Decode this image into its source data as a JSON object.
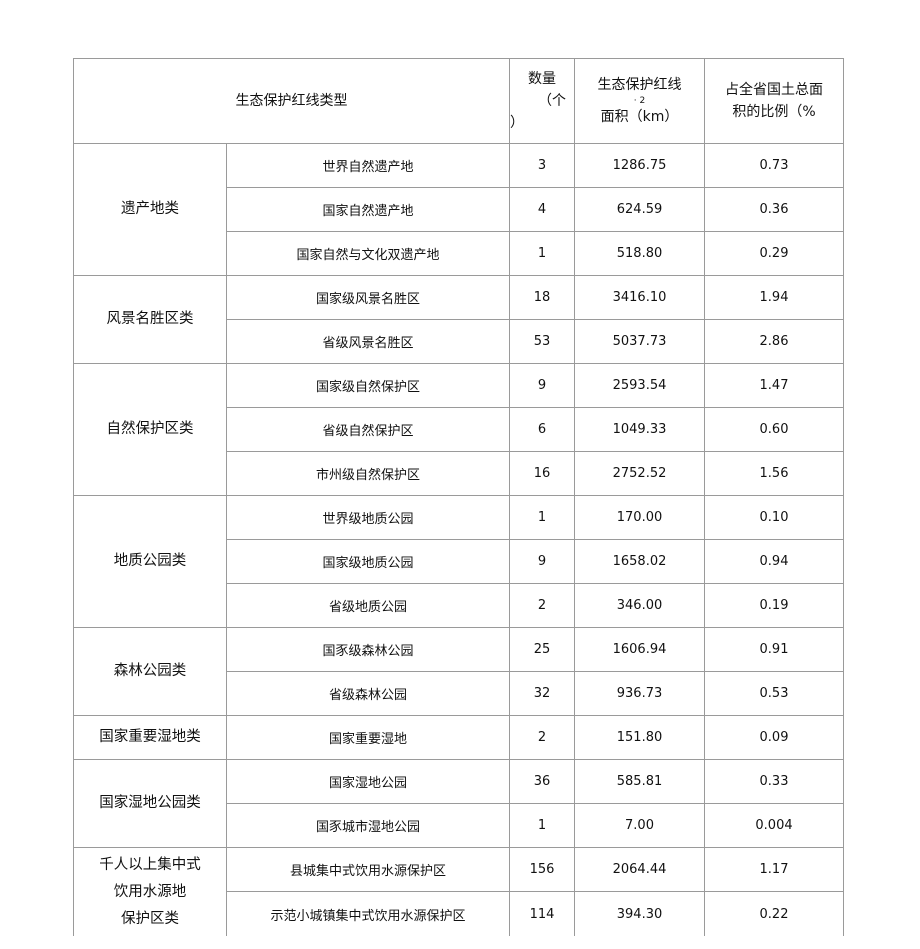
{
  "header": {
    "type": "生态保护红线类型",
    "count_line1": "数量",
    "count_line2": "（个",
    "count_line3": "）",
    "area_line1": "生态保护红线",
    "area_sup": "· 2",
    "area_line2": "面积（km）",
    "ratio_line1": "占全省国土总面",
    "ratio_line2": "积的比例（%"
  },
  "groups": [
    {
      "category": "遗产地类",
      "rows": [
        {
          "name": "世界自然遗产地",
          "count": "3",
          "area": "1286.75",
          "ratio": "0.73"
        },
        {
          "name": "国家自然遗产地",
          "count": "4",
          "area": "624.59",
          "ratio": "0.36"
        },
        {
          "name": "国家自然与文化双遗产地",
          "count": "1",
          "area": "518.80",
          "ratio": "0.29"
        }
      ]
    },
    {
      "category": "风景名胜区类",
      "rows": [
        {
          "name": "国家级风景名胜区",
          "count": "18",
          "area": "3416.10",
          "ratio": "1.94"
        },
        {
          "name": "省级风景名胜区",
          "count": "53",
          "area": "5037.73",
          "ratio": "2.86"
        }
      ]
    },
    {
      "category": "自然保护区类",
      "rows": [
        {
          "name": "国家级自然保护区",
          "count": "9",
          "area": "2593.54",
          "ratio": "1.47"
        },
        {
          "name": "省级自然保护区",
          "count": "6",
          "area": "1049.33",
          "ratio": "0.60"
        },
        {
          "name": "市州级自然保护区",
          "count": "16",
          "area": "2752.52",
          "ratio": "1.56"
        }
      ]
    },
    {
      "category": "地质公园类",
      "rows": [
        {
          "name": "世界级地质公园",
          "count": "1",
          "area": "170.00",
          "ratio": "0.10"
        },
        {
          "name": "国家级地质公园",
          "count": "9",
          "area": "1658.02",
          "ratio": "0.94"
        },
        {
          "name": "省级地质公园",
          "count": "2",
          "area": "346.00",
          "ratio": "0.19"
        }
      ]
    },
    {
      "category": "森林公园类",
      "rows": [
        {
          "name": "国豕级森林公园",
          "count": "25",
          "area": "1606.94",
          "ratio": "0.91"
        },
        {
          "name": "省级森林公园",
          "count": "32",
          "area": "936.73",
          "ratio": "0.53"
        }
      ]
    },
    {
      "category": "国家重要湿地类",
      "rows": [
        {
          "name": "国家重要湿地",
          "count": "2",
          "area": "151.80",
          "ratio": "0.09"
        }
      ]
    },
    {
      "category": "国家湿地公园类",
      "rows": [
        {
          "name": "国家湿地公园",
          "count": "36",
          "area": "585.81",
          "ratio": "0.33"
        },
        {
          "name": "国豕城市湿地公园",
          "count": "1",
          "area": "7.00",
          "ratio": "0.004"
        }
      ]
    },
    {
      "category": "千人以上集中式\n饮用水源地\n保护区类",
      "rows": [
        {
          "name": "县城集中式饮用水源保护区",
          "count": "156",
          "area": "2064.44",
          "ratio": "1.17"
        },
        {
          "name": "示范小城镇集中式饮用水源保护区",
          "count": "114",
          "area": "394.30",
          "ratio": "0.22"
        }
      ]
    }
  ]
}
